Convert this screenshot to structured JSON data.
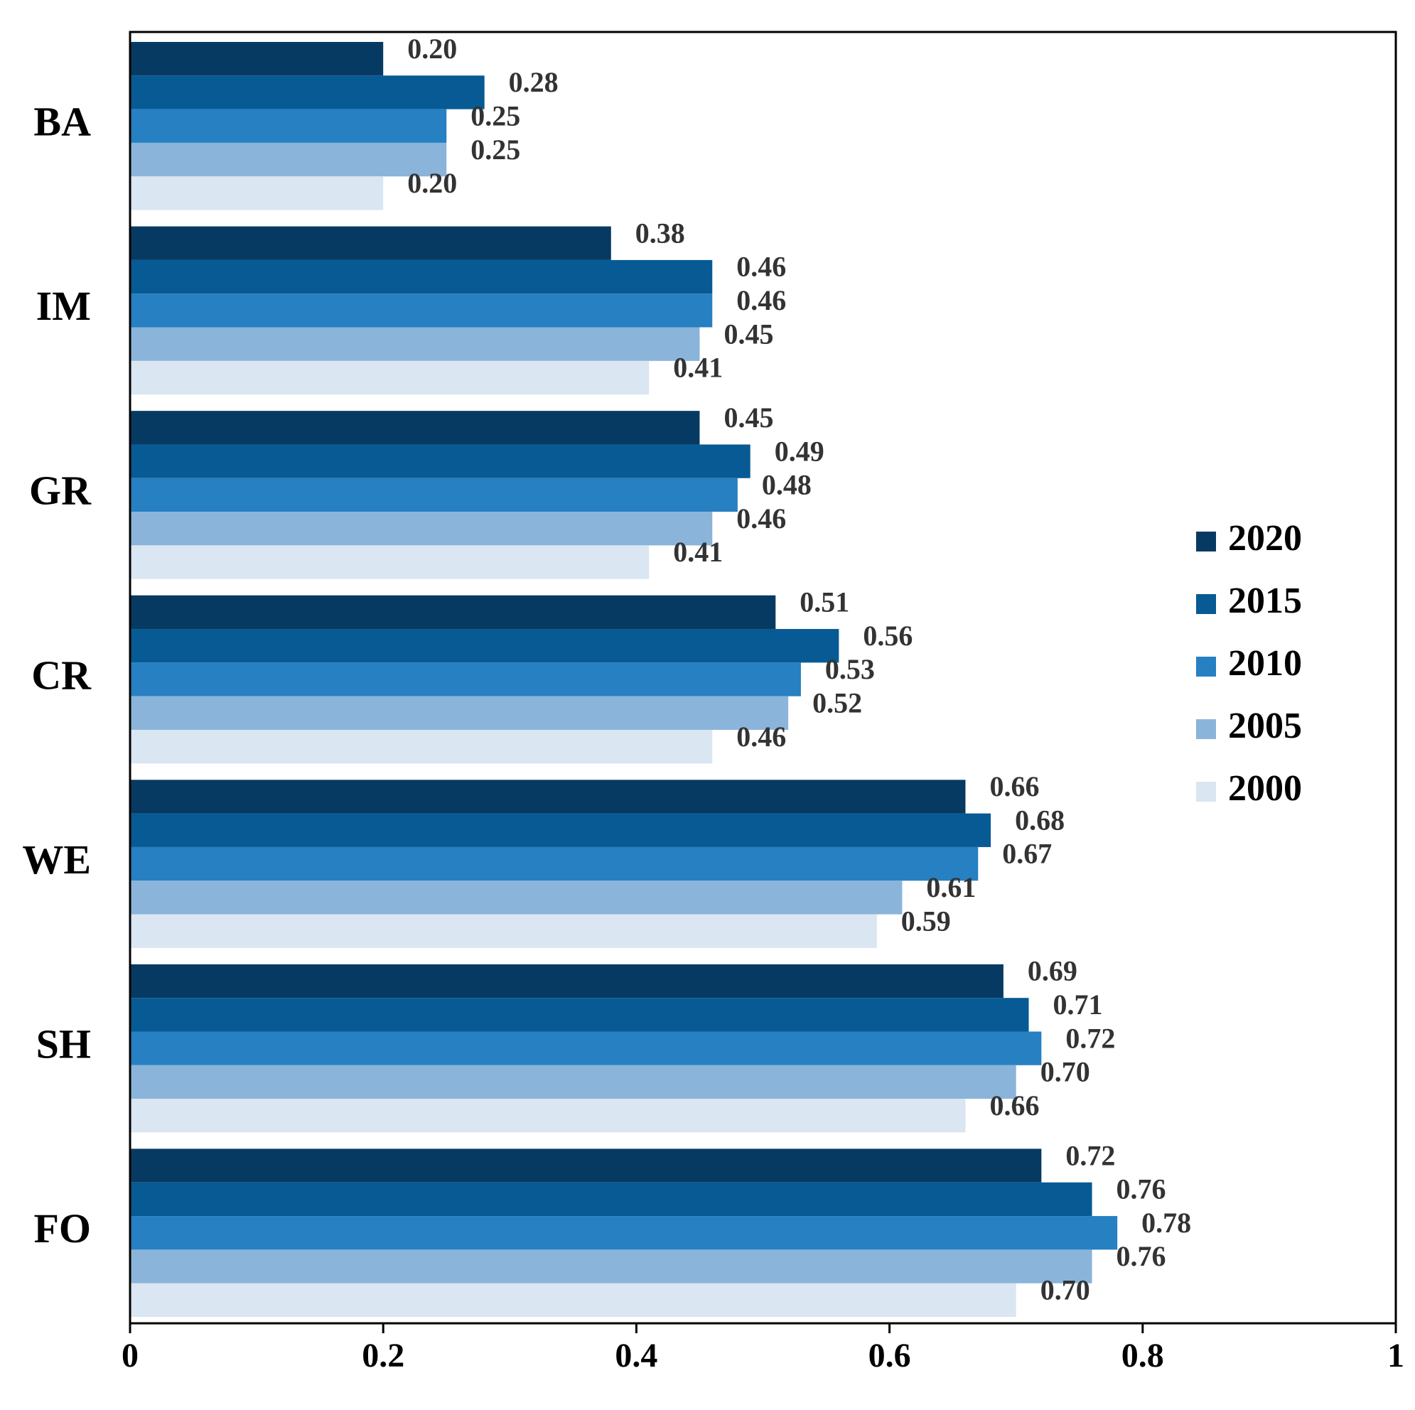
{
  "chart_data": {
    "type": "barh",
    "categories": [
      "BA",
      "IM",
      "GR",
      "CR",
      "WE",
      "SH",
      "FO"
    ],
    "series": [
      {
        "name": "2020",
        "color": "#073a62",
        "values": [
          0.2,
          0.38,
          0.45,
          0.51,
          0.66,
          0.69,
          0.72
        ],
        "value_labels": [
          "0.20",
          "0.38",
          "0.45",
          "0.51",
          "0.66",
          "0.69",
          "0.72"
        ]
      },
      {
        "name": "2015",
        "color": "#075a94",
        "values": [
          0.28,
          0.46,
          0.49,
          0.56,
          0.68,
          0.71,
          0.76
        ],
        "value_labels": [
          "0.28",
          "0.46",
          "0.49",
          "0.56",
          "0.68",
          "0.71",
          "0.76"
        ]
      },
      {
        "name": "2010",
        "color": "#2680c2",
        "values": [
          0.25,
          0.46,
          0.48,
          0.53,
          0.67,
          0.72,
          0.78
        ],
        "value_labels": [
          "0.25",
          "0.46",
          "0.48",
          "0.53",
          "0.67",
          "0.72",
          "0.78"
        ]
      },
      {
        "name": "2005",
        "color": "#8ab4da",
        "values": [
          0.25,
          0.45,
          0.46,
          0.52,
          0.61,
          0.7,
          0.76
        ],
        "value_labels": [
          "0.25",
          "0.45",
          "0.46",
          "0.52",
          "0.61",
          "0.70",
          "0.76"
        ]
      },
      {
        "name": "2000",
        "color": "#dae6f2",
        "values": [
          0.2,
          0.41,
          0.41,
          0.46,
          0.59,
          0.66,
          0.7
        ],
        "value_labels": [
          "0.20",
          "0.41",
          "0.41",
          "0.46",
          "0.59",
          "0.66",
          "0.70"
        ]
      }
    ],
    "xlim": [
      0,
      1
    ],
    "xticks": [
      0,
      0.2,
      0.4,
      0.6,
      0.8,
      1
    ],
    "grid": false,
    "legend": "right"
  }
}
